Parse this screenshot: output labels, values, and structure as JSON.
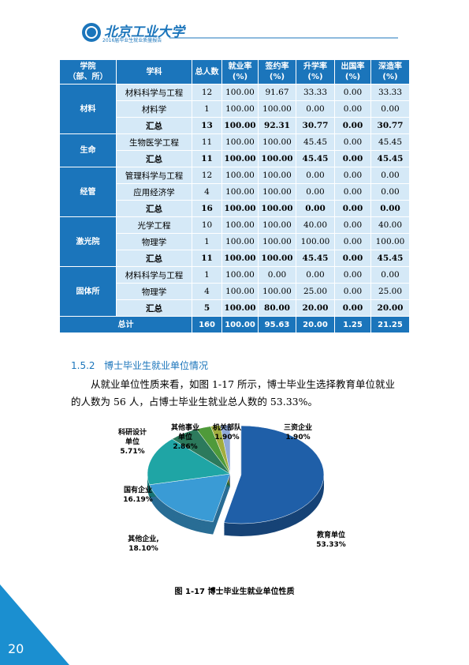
{
  "header": {
    "logo_text": "北京工业大学",
    "subtitle": "2016届毕业生就业质量报告"
  },
  "table": {
    "columns": [
      [
        "学院",
        "（部、所）"
      ],
      [
        "学科"
      ],
      [
        "总人数"
      ],
      [
        "就业率",
        "(%)"
      ],
      [
        "签约率",
        "(%)"
      ],
      [
        "升学率",
        "(%)"
      ],
      [
        "出国率",
        "(%)"
      ],
      [
        "深造率",
        "(%)"
      ]
    ],
    "groups": [
      {
        "college": "材料",
        "rows": [
          [
            "材料科学与工程",
            "12",
            "100.00",
            "91.67",
            "33.33",
            "0.00",
            "33.33"
          ],
          [
            "材料学",
            "1",
            "100.00",
            "100.00",
            "0.00",
            "0.00",
            "0.00"
          ],
          [
            "汇总",
            "13",
            "100.00",
            "92.31",
            "30.77",
            "0.00",
            "30.77"
          ]
        ]
      },
      {
        "college": "生命",
        "rows": [
          [
            "生物医学工程",
            "11",
            "100.00",
            "100.00",
            "45.45",
            "0.00",
            "45.45"
          ],
          [
            "汇总",
            "11",
            "100.00",
            "100.00",
            "45.45",
            "0.00",
            "45.45"
          ]
        ]
      },
      {
        "college": "经管",
        "rows": [
          [
            "管理科学与工程",
            "12",
            "100.00",
            "100.00",
            "0.00",
            "0.00",
            "0.00"
          ],
          [
            "应用经济学",
            "4",
            "100.00",
            "100.00",
            "0.00",
            "0.00",
            "0.00"
          ],
          [
            "汇总",
            "16",
            "100.00",
            "100.00",
            "0.00",
            "0.00",
            "0.00"
          ]
        ]
      },
      {
        "college": "激光院",
        "rows": [
          [
            "光学工程",
            "10",
            "100.00",
            "100.00",
            "40.00",
            "0.00",
            "40.00"
          ],
          [
            "物理学",
            "1",
            "100.00",
            "100.00",
            "100.00",
            "0.00",
            "100.00"
          ],
          [
            "汇总",
            "11",
            "100.00",
            "100.00",
            "45.45",
            "0.00",
            "45.45"
          ]
        ]
      },
      {
        "college": "固体所",
        "rows": [
          [
            "材料科学与工程",
            "1",
            "100.00",
            "0.00",
            "0.00",
            "0.00",
            "0.00"
          ],
          [
            "物理学",
            "4",
            "100.00",
            "100.00",
            "25.00",
            "0.00",
            "25.00"
          ],
          [
            "汇总",
            "5",
            "100.00",
            "80.00",
            "20.00",
            "0.00",
            "20.00"
          ]
        ]
      }
    ],
    "total": {
      "label": "总计",
      "cells": [
        "160",
        "100.00",
        "95.63",
        "20.00",
        "1.25",
        "21.25"
      ]
    }
  },
  "section": {
    "number": "1.5.2",
    "title": "博士毕业生就业单位情况"
  },
  "paragraph": "从就业单位性质来看，如图 1-17 所示，博士毕业生选择教育单位就业的人数为 56 人，占博士毕业生就业总人数的 53.33%。",
  "figure": {
    "type": "pie",
    "labels": [
      [
        "教育单位"
      ],
      [
        "其他企业,"
      ],
      [
        "国有企业"
      ],
      [
        "科研设计",
        "单位"
      ],
      [
        "其他事业",
        "单位"
      ],
      [
        "机关部队"
      ],
      [
        "三资企业"
      ]
    ],
    "values": [
      53.33,
      18.1,
      16.19,
      5.71,
      2.86,
      1.9,
      1.9
    ],
    "value_labels": [
      "53.33%",
      "18.10%",
      "16.19%",
      "5.71%",
      "2.86%",
      "1.90%",
      "1.90%"
    ],
    "colors": [
      "#1f5fa8",
      "#3a9bd5",
      "#1fa5a5",
      "#2c7a5c",
      "#4f9a3a",
      "#a2ad3e",
      "#8fa9d8"
    ],
    "caption": "图 1-17    博士毕业生就业单位性质"
  },
  "page_number": "20"
}
